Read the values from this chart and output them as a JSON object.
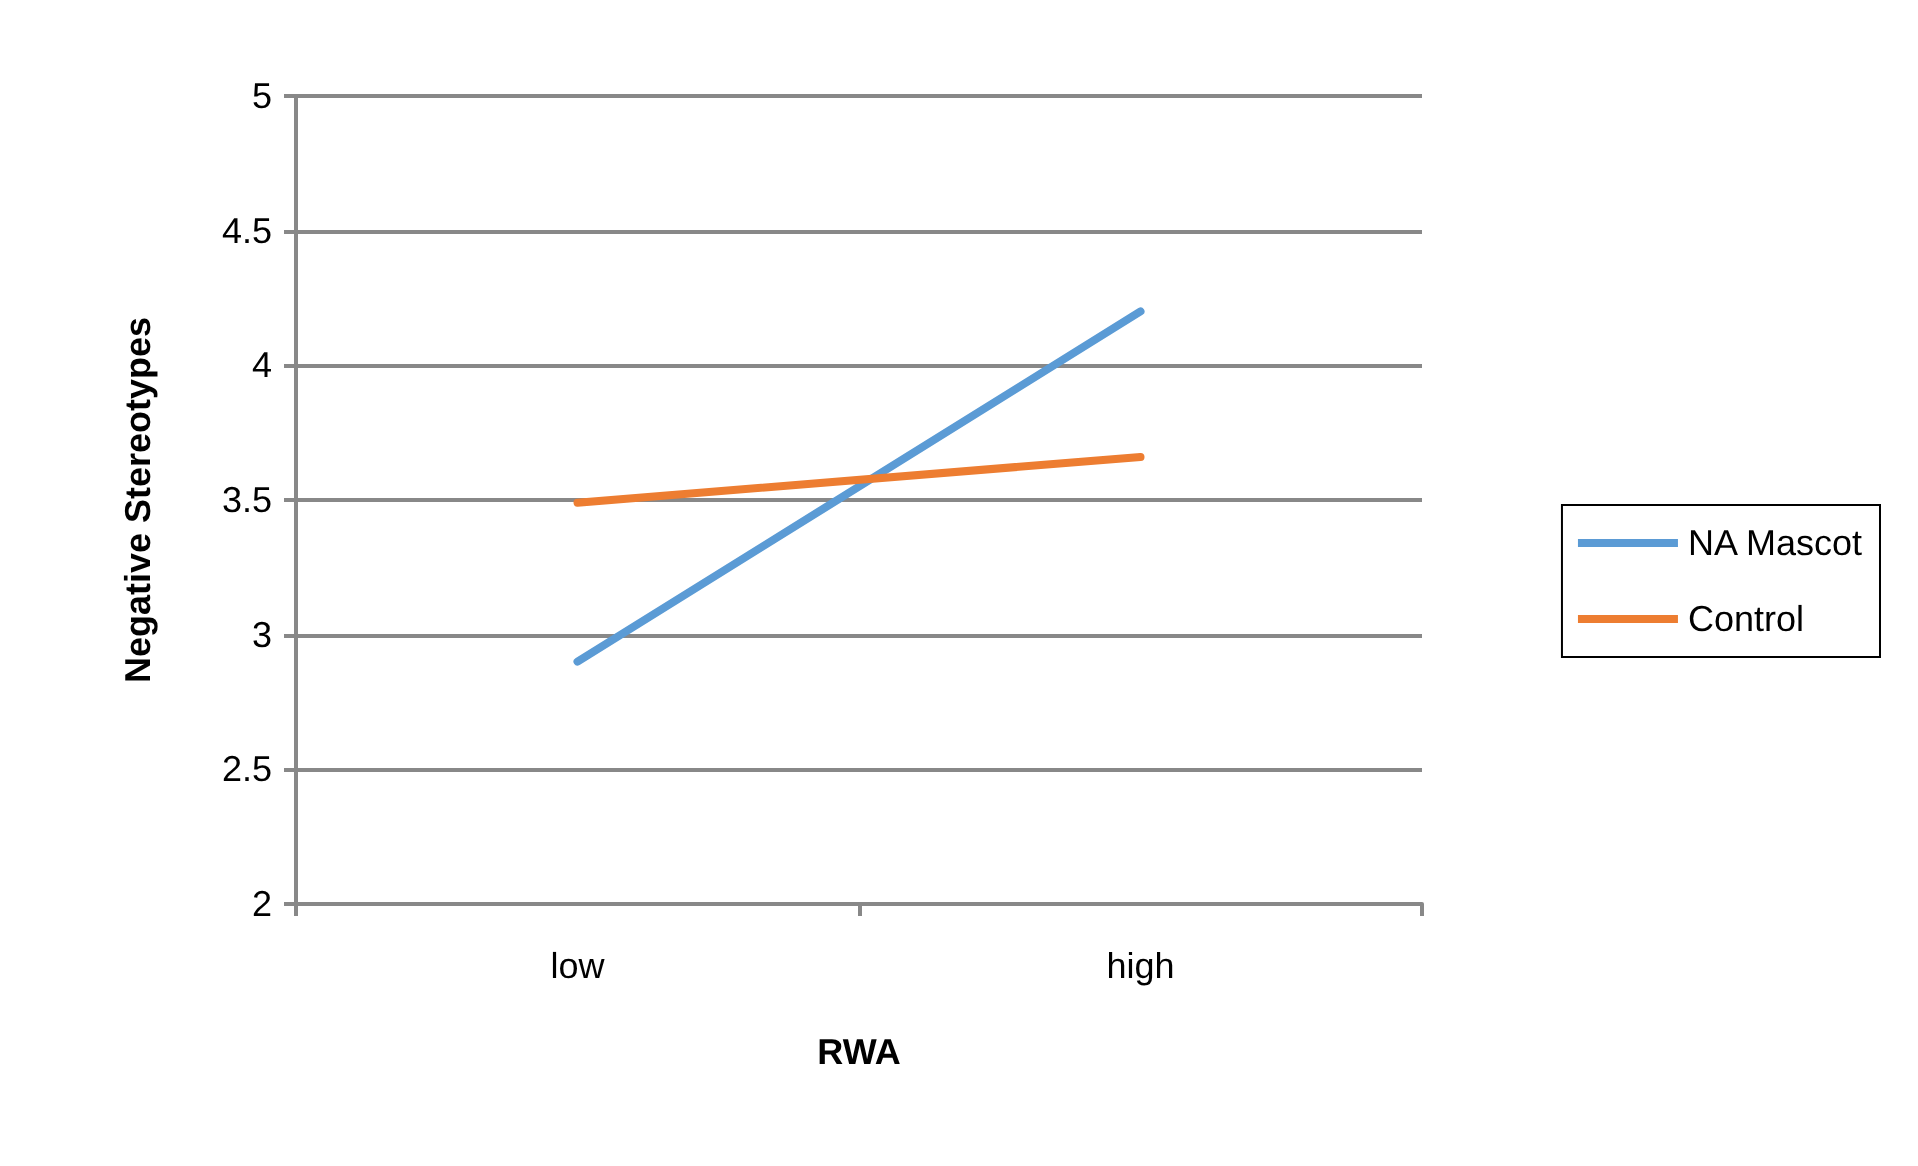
{
  "chart_data": {
    "type": "line",
    "xlabel": "RWA",
    "ylabel": "Negative Stereotypes",
    "categories": [
      "low",
      "high"
    ],
    "series": [
      {
        "name": "NA Mascot",
        "color": "#5b9bd5",
        "values": [
          2.9,
          4.2
        ]
      },
      {
        "name": "Control",
        "color": "#ed7d31",
        "values": [
          3.49,
          3.66
        ]
      }
    ],
    "ylim": [
      2,
      5
    ],
    "yticks": [
      2,
      2.5,
      3,
      3.5,
      4,
      4.5,
      5
    ],
    "grid": "y",
    "legend": "right",
    "marker": "none",
    "line_style": "solid"
  }
}
